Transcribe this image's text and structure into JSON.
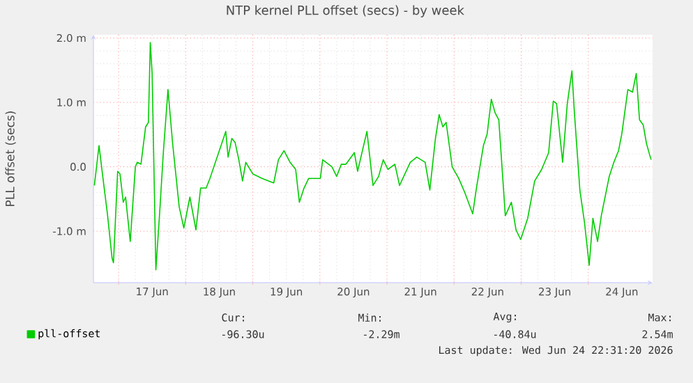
{
  "chart_data": {
    "type": "line",
    "title": "NTP kernel PLL offset (secs) - by week",
    "ylabel": "PLL offset (secs)",
    "x": [
      "2026-06-16T15:20",
      "2026-06-16T17:00",
      "2026-06-16T18:20",
      "2026-06-16T20:00",
      "2026-06-16T21:40",
      "2026-06-16T22:10",
      "2026-06-16T23:40",
      "2026-06-17T00:30",
      "2026-06-17T01:40",
      "2026-06-17T02:30",
      "2026-06-17T04:10",
      "2026-06-17T06:00",
      "2026-06-17T06:40",
      "2026-06-17T08:00",
      "2026-06-17T09:40",
      "2026-06-17T10:40",
      "2026-06-17T11:20",
      "2026-06-17T12:00",
      "2026-06-17T13:20",
      "2026-06-17T14:40",
      "2026-06-17T16:00",
      "2026-06-17T17:40",
      "2026-06-17T19:20",
      "2026-06-17T21:40",
      "2026-06-17T23:20",
      "2026-06-18T01:30",
      "2026-06-18T03:40",
      "2026-06-18T05:20",
      "2026-06-18T07:20",
      "2026-06-18T08:40",
      "2026-06-18T12:20",
      "2026-06-18T14:20",
      "2026-06-18T15:10",
      "2026-06-18T16:30",
      "2026-06-18T17:40",
      "2026-06-18T19:00",
      "2026-06-18T20:20",
      "2026-06-18T21:30",
      "2026-06-19T00:00",
      "2026-06-19T03:20",
      "2026-06-19T07:30",
      "2026-06-19T09:10",
      "2026-06-19T11:10",
      "2026-06-19T13:20",
      "2026-06-19T15:20",
      "2026-06-19T16:40",
      "2026-06-19T18:20",
      "2026-06-19T20:00",
      "2026-06-20T00:10",
      "2026-06-20T01:00",
      "2026-06-20T04:20",
      "2026-06-20T06:00",
      "2026-06-20T07:40",
      "2026-06-20T09:20",
      "2026-06-20T12:20",
      "2026-06-20T13:30",
      "2026-06-20T16:50",
      "2026-06-20T19:00",
      "2026-06-20T21:00",
      "2026-06-20T22:40",
      "2026-06-21T00:20",
      "2026-06-21T02:50",
      "2026-06-21T04:30",
      "2026-06-21T08:20",
      "2026-06-21T10:40",
      "2026-06-21T13:40",
      "2026-06-21T15:20",
      "2026-06-21T17:20",
      "2026-06-21T18:40",
      "2026-06-21T20:00",
      "2026-06-21T21:10",
      "2026-06-21T23:20",
      "2026-06-22T01:40",
      "2026-06-22T03:50",
      "2026-06-22T06:40",
      "2026-06-22T08:00",
      "2026-06-22T10:30",
      "2026-06-22T11:50",
      "2026-06-22T13:20",
      "2026-06-22T14:40",
      "2026-06-22T16:00",
      "2026-06-22T18:20",
      "2026-06-22T20:30",
      "2026-06-22T22:10",
      "2026-06-22T23:50",
      "2026-06-23T02:20",
      "2026-06-23T04:50",
      "2026-06-23T07:20",
      "2026-06-23T09:50",
      "2026-06-23T11:30",
      "2026-06-23T12:40",
      "2026-06-23T14:50",
      "2026-06-23T16:30",
      "2026-06-23T18:10",
      "2026-06-23T19:00",
      "2026-06-23T21:00",
      "2026-06-23T22:40",
      "2026-06-24T00:20",
      "2026-06-24T01:40",
      "2026-06-24T03:20",
      "2026-06-24T04:40",
      "2026-06-24T05:50",
      "2026-06-24T07:30",
      "2026-06-24T09:10",
      "2026-06-24T10:50",
      "2026-06-24T12:00",
      "2026-06-24T14:10",
      "2026-06-24T15:50",
      "2026-06-24T17:10",
      "2026-06-24T18:20",
      "2026-06-24T19:40",
      "2026-06-24T20:50",
      "2026-06-24T22:00",
      "2026-06-24T22:30"
    ],
    "series": [
      {
        "name": "pll-offset",
        "color": "#00cc00",
        "values": [
          -0.29,
          0.33,
          -0.15,
          -0.73,
          -1.42,
          -1.49,
          -0.07,
          -0.11,
          -0.55,
          -0.47,
          -1.16,
          0.0,
          0.07,
          0.04,
          0.62,
          0.69,
          1.93,
          1.45,
          -1.6,
          -0.73,
          0.22,
          1.2,
          0.36,
          -0.62,
          -0.95,
          -0.47,
          -0.98,
          -0.33,
          -0.33,
          -0.18,
          0.29,
          0.55,
          0.15,
          0.44,
          0.38,
          0.11,
          -0.22,
          0.07,
          -0.11,
          -0.18,
          -0.25,
          0.11,
          0.25,
          0.07,
          -0.04,
          -0.55,
          -0.33,
          -0.18,
          -0.18,
          0.11,
          0.0,
          -0.15,
          0.04,
          0.04,
          0.22,
          -0.07,
          0.55,
          -0.29,
          -0.15,
          0.11,
          -0.04,
          0.04,
          -0.29,
          0.07,
          0.15,
          0.07,
          -0.36,
          0.44,
          0.81,
          0.62,
          0.69,
          0.0,
          -0.18,
          -0.4,
          -0.73,
          -0.33,
          0.33,
          0.51,
          1.05,
          0.84,
          0.73,
          -0.76,
          -0.55,
          -0.98,
          -1.13,
          -0.8,
          -0.22,
          -0.04,
          0.22,
          1.02,
          0.98,
          0.07,
          0.98,
          1.49,
          0.87,
          -0.36,
          -0.87,
          -1.53,
          -0.8,
          -1.16,
          -0.76,
          -0.51,
          -0.15,
          0.07,
          0.25,
          0.51,
          1.2,
          1.16,
          1.45,
          0.73,
          0.65,
          0.36,
          0.18,
          0.11
        ]
      }
    ],
    "xlim": [
      "2026-06-16T15:00",
      "2026-06-24T23:00"
    ],
    "xticks": [
      {
        "value": "2026-06-17T00:00",
        "label": null
      },
      {
        "value": "2026-06-17T12:00",
        "label": "17 Jun"
      },
      {
        "value": "2026-06-18T00:00",
        "label": null
      },
      {
        "value": "2026-06-18T12:00",
        "label": "18 Jun"
      },
      {
        "value": "2026-06-19T00:00",
        "label": null
      },
      {
        "value": "2026-06-19T12:00",
        "label": "19 Jun"
      },
      {
        "value": "2026-06-20T00:00",
        "label": null
      },
      {
        "value": "2026-06-20T12:00",
        "label": "20 Jun"
      },
      {
        "value": "2026-06-21T00:00",
        "label": null
      },
      {
        "value": "2026-06-21T12:00",
        "label": "21 Jun"
      },
      {
        "value": "2026-06-22T00:00",
        "label": null
      },
      {
        "value": "2026-06-22T12:00",
        "label": "22 Jun"
      },
      {
        "value": "2026-06-23T00:00",
        "label": null
      },
      {
        "value": "2026-06-23T12:00",
        "label": "23 Jun"
      },
      {
        "value": "2026-06-24T00:00",
        "label": null
      },
      {
        "value": "2026-06-24T12:00",
        "label": "24 Jun"
      }
    ],
    "ylim": [
      -1.8,
      2.05
    ],
    "yticks": [
      {
        "value": 2,
        "label": "2.0 m"
      },
      {
        "value": 1,
        "label": "1.0 m"
      },
      {
        "value": 0,
        "label": "0.0"
      },
      {
        "value": -1,
        "label": "-1.0 m"
      }
    ],
    "grid": true,
    "legend": "bottom",
    "annotations": [
      "Cur:",
      "Min:",
      "Avg:",
      "Max:",
      "-96.30u",
      "-2.29m",
      "-40.84u",
      "2.54m",
      "Last update: Wed Jun 24 22:31:20 2026"
    ]
  }
}
